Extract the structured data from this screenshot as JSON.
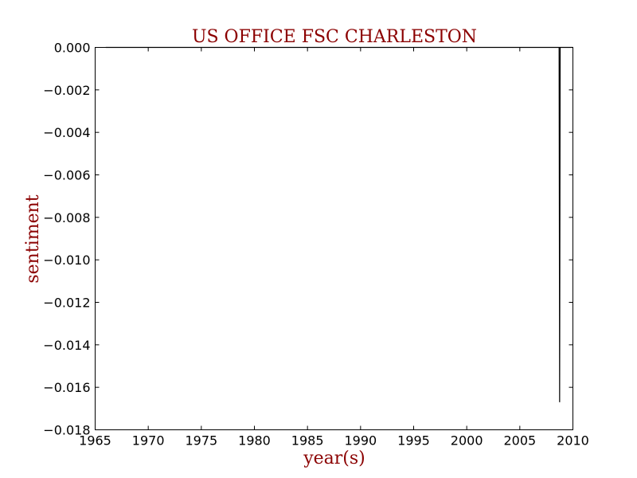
{
  "chart_data": {
    "type": "line",
    "title": "US OFFICE FSC CHARLESTON",
    "xlabel": "year(s)",
    "ylabel": "sentiment",
    "xlim": [
      1965,
      2010
    ],
    "ylim": [
      -0.018,
      0.0
    ],
    "x_ticks": [
      "1965",
      "1970",
      "1975",
      "1980",
      "1985",
      "1990",
      "1995",
      "2000",
      "2005",
      "2010"
    ],
    "y_ticks": [
      "0.000",
      "−0.002",
      "−0.004",
      "−0.006",
      "−0.008",
      "−0.010",
      "−0.012",
      "−0.014",
      "−0.016",
      "−0.018"
    ],
    "grid": false,
    "series": [
      {
        "color": "#000000",
        "x": [
          1966.0,
          1975.0,
          1985.0,
          1995.0,
          2005.0,
          2008.7,
          2008.75,
          2008.8,
          2010.0
        ],
        "y": [
          0.0,
          0.0,
          0.0,
          0.0,
          0.0,
          0.0,
          -0.0167,
          0.0,
          0.0
        ]
      }
    ],
    "title_color": "#8b0000",
    "label_color": "#8b0000"
  }
}
